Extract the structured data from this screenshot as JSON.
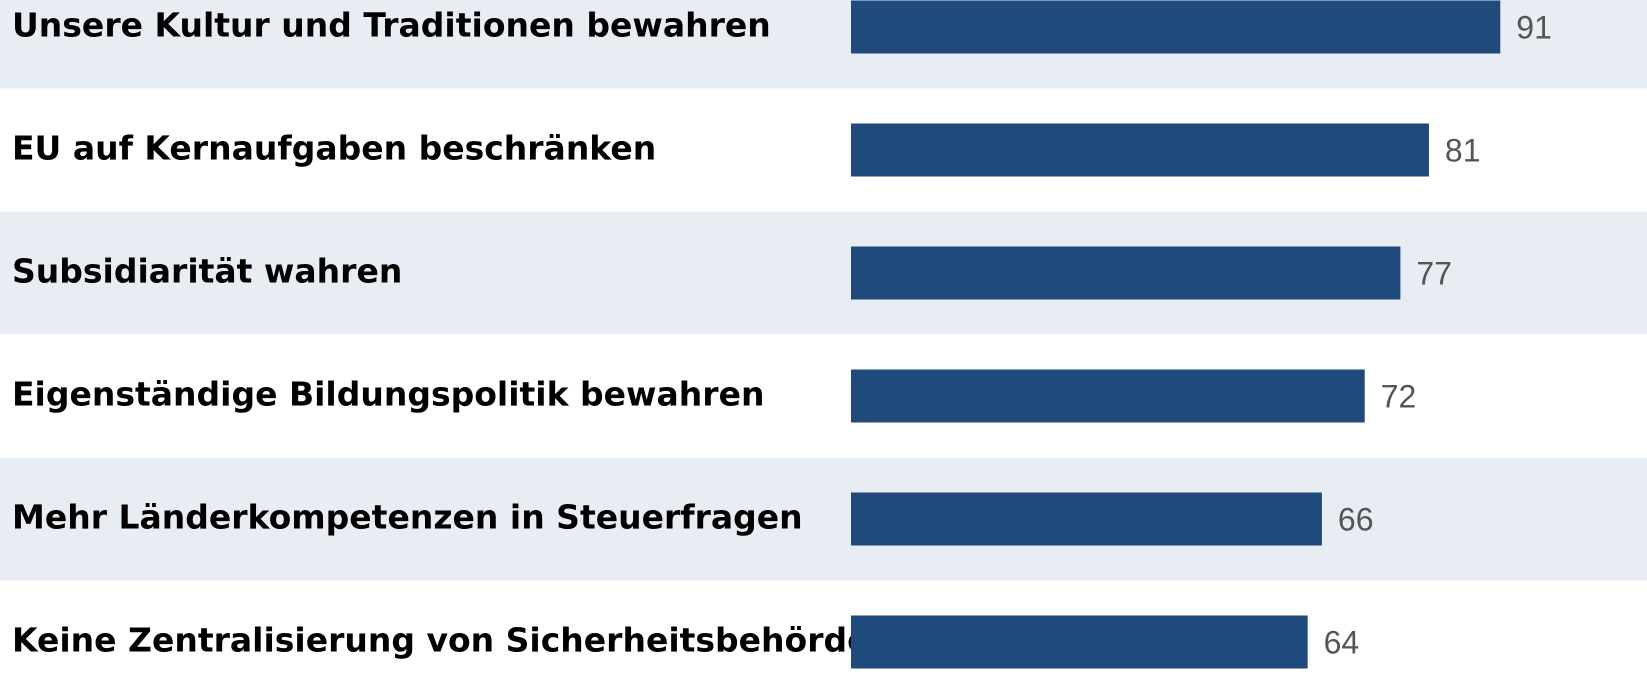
{
  "chart_data": {
    "type": "bar",
    "orientation": "horizontal",
    "categories": [
      "Unsere Kultur und Traditionen bewahren",
      "EU auf Kernaufgaben beschränken",
      "Subsidiarität wahren",
      "Eigenständige Bildungspolitik bewahren",
      "Mehr Länderkompetenzen in Steuerfragen",
      "Keine Zentralisierung von Sicherheitsbehörden"
    ],
    "values": [
      91,
      81,
      77,
      72,
      66,
      64
    ],
    "color": "#214a7c",
    "stripe_color": "#e8ecf3"
  }
}
